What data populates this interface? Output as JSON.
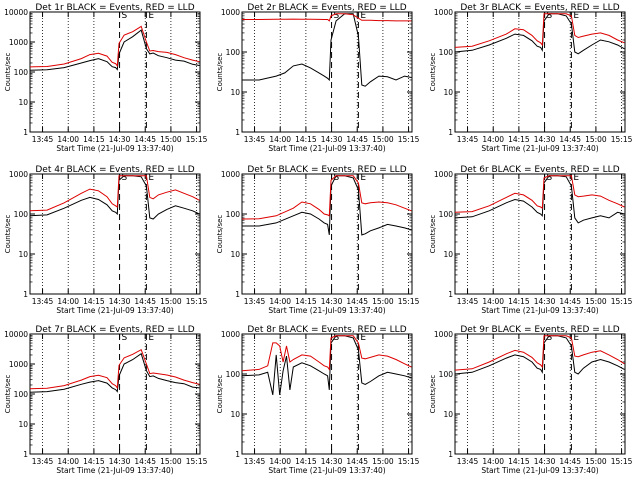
{
  "figure": {
    "background": "#ffffff",
    "axis_color": "#000000"
  },
  "common": {
    "xlabel": "Start Time (21-Jul-09 13:37:40)",
    "ylabel": "Counts/sec",
    "x_ticks": [
      "13:45",
      "14:00",
      "14:15",
      "14:30",
      "14:45",
      "15:00",
      "15:15"
    ],
    "y_ticks": [
      "1",
      "10",
      "100",
      "1000",
      "10000"
    ],
    "marker_s": "S",
    "marker_e": "E",
    "series": [
      {
        "name": "BLACK = Events",
        "color": "#000000"
      },
      {
        "name": "RED = LLD",
        "color": "#dd0000"
      }
    ]
  },
  "chart_data": [
    {
      "type": "line",
      "title": "Det 1r  BLACK = Events, RED = LLD",
      "y_scale": "log",
      "ylim": [
        1,
        10000
      ],
      "xlim": [
        "13:37:40",
        "15:17:00"
      ],
      "grid": "vertical dotted",
      "x_minutes": [
        0,
        10,
        20,
        30,
        35,
        40,
        45,
        48,
        50,
        51,
        52,
        55,
        60,
        65,
        68,
        70,
        72,
        75,
        80,
        85,
        90,
        95,
        99
      ],
      "series": [
        {
          "values": [
            115,
            118,
            140,
            200,
            240,
            280,
            220,
            150,
            140,
            120,
            400,
            1000,
            1500,
            2500,
            600,
            400,
            430,
            350,
            300,
            250,
            230,
            180,
            165
          ]
        },
        {
          "values": [
            148,
            152,
            185,
            280,
            380,
            420,
            340,
            210,
            190,
            160,
            900,
            1700,
            2200,
            3300,
            1000,
            500,
            520,
            480,
            450,
            380,
            300,
            250,
            220
          ]
        }
      ]
    },
    {
      "type": "line",
      "title": "Det 2r  BLACK = Events, RED = LLD",
      "y_scale": "log",
      "ylim": [
        1,
        1000
      ],
      "xlim": [
        "13:37:40",
        "15:17:00"
      ],
      "grid": "vertical dotted",
      "x_minutes": [
        0,
        10,
        20,
        25,
        30,
        35,
        40,
        45,
        48,
        50,
        51,
        52,
        55,
        60,
        65,
        68,
        70,
        72,
        75,
        80,
        85,
        90,
        95,
        99
      ],
      "series": [
        {
          "values": [
            20,
            20,
            25,
            30,
            45,
            50,
            40,
            30,
            25,
            22,
            20,
            200,
            600,
            900,
            900,
            250,
            15,
            14,
            18,
            25,
            24,
            20,
            25,
            23
          ]
        },
        {
          "values": [
            650,
            650,
            660,
            660,
            665,
            660,
            660,
            655,
            650,
            650,
            600,
            800,
            900,
            900,
            850,
            700,
            620,
            620,
            620,
            610,
            610,
            600,
            600,
            600
          ]
        }
      ]
    },
    {
      "type": "line",
      "title": "Det 3r  BLACK = Events, RED = LLD",
      "y_scale": "log",
      "ylim": [
        1,
        1000
      ],
      "xlim": [
        "13:37:40",
        "15:17:00"
      ],
      "grid": "vertical dotted",
      "x_minutes": [
        0,
        10,
        20,
        30,
        35,
        40,
        45,
        48,
        50,
        51,
        52,
        55,
        60,
        65,
        68,
        70,
        72,
        75,
        80,
        85,
        90,
        95,
        99
      ],
      "series": [
        {
          "values": [
            100,
            110,
            150,
            220,
            280,
            260,
            190,
            140,
            130,
            110,
            600,
            900,
            900,
            800,
            500,
            100,
            90,
            110,
            150,
            200,
            180,
            150,
            120
          ]
        },
        {
          "values": [
            130,
            140,
            190,
            280,
            380,
            360,
            260,
            190,
            170,
            150,
            900,
            900,
            900,
            900,
            800,
            260,
            230,
            250,
            280,
            300,
            260,
            200,
            170
          ]
        }
      ]
    },
    {
      "type": "line",
      "title": "Det 4r  BLACK = Events, RED = LLD",
      "y_scale": "log",
      "ylim": [
        1,
        1000
      ],
      "xlim": [
        "13:37:40",
        "15:17:00"
      ],
      "grid": "vertical dotted",
      "x_minutes": [
        0,
        10,
        20,
        30,
        35,
        40,
        45,
        48,
        50,
        51,
        52,
        55,
        60,
        65,
        68,
        70,
        72,
        75,
        80,
        85,
        90,
        95,
        99
      ],
      "series": [
        {
          "values": [
            90,
            95,
            140,
            220,
            260,
            230,
            170,
            120,
            110,
            100,
            700,
            900,
            900,
            850,
            500,
            80,
            75,
            100,
            130,
            160,
            140,
            120,
            100
          ]
        },
        {
          "values": [
            120,
            125,
            190,
            330,
            420,
            380,
            270,
            180,
            160,
            150,
            900,
            900,
            900,
            900,
            900,
            260,
            240,
            300,
            350,
            400,
            330,
            270,
            220
          ]
        }
      ]
    },
    {
      "type": "line",
      "title": "Det 5r  BLACK = Events, RED = LLD",
      "y_scale": "log",
      "ylim": [
        1,
        1000
      ],
      "xlim": [
        "13:37:40",
        "15:17:00"
      ],
      "grid": "vertical dotted",
      "x_minutes": [
        0,
        10,
        20,
        30,
        35,
        40,
        45,
        48,
        50,
        51,
        52,
        55,
        60,
        65,
        68,
        70,
        72,
        75,
        80,
        85,
        90,
        95,
        99
      ],
      "series": [
        {
          "values": [
            50,
            50,
            60,
            90,
            110,
            100,
            75,
            60,
            55,
            30,
            500,
            900,
            900,
            800,
            400,
            30,
            32,
            38,
            45,
            55,
            50,
            45,
            40
          ]
        },
        {
          "values": [
            75,
            76,
            90,
            140,
            200,
            180,
            130,
            100,
            95,
            90,
            700,
            900,
            900,
            900,
            600,
            190,
            180,
            190,
            200,
            190,
            170,
            140,
            120
          ]
        }
      ]
    },
    {
      "type": "line",
      "title": "Det 6r  BLACK = Events, RED = LLD",
      "y_scale": "log",
      "ylim": [
        1,
        1000
      ],
      "xlim": [
        "13:37:40",
        "15:17:00"
      ],
      "grid": "vertical dotted",
      "x_minutes": [
        0,
        10,
        20,
        30,
        35,
        40,
        45,
        48,
        50,
        51,
        52,
        55,
        60,
        65,
        68,
        70,
        72,
        75,
        80,
        85,
        90,
        95,
        99
      ],
      "series": [
        {
          "values": [
            80,
            85,
            120,
            190,
            230,
            210,
            150,
            110,
            100,
            90,
            600,
            900,
            900,
            850,
            500,
            80,
            60,
            70,
            80,
            90,
            80,
            110,
            100
          ]
        },
        {
          "values": [
            110,
            115,
            160,
            260,
            330,
            300,
            220,
            160,
            150,
            140,
            800,
            900,
            900,
            900,
            900,
            300,
            270,
            280,
            300,
            280,
            220,
            180,
            150
          ]
        }
      ]
    },
    {
      "type": "line",
      "title": "Det 7r  BLACK = Events, RED = LLD",
      "y_scale": "log",
      "ylim": [
        1,
        10000
      ],
      "xlim": [
        "13:37:40",
        "15:17:00"
      ],
      "grid": "vertical dotted",
      "x_minutes": [
        0,
        10,
        20,
        30,
        35,
        40,
        45,
        48,
        50,
        51,
        52,
        55,
        60,
        65,
        68,
        70,
        72,
        75,
        80,
        85,
        90,
        95,
        99
      ],
      "series": [
        {
          "values": [
            115,
            120,
            145,
            210,
            250,
            280,
            230,
            160,
            140,
            120,
            400,
            1000,
            1400,
            2200,
            600,
            380,
            400,
            330,
            280,
            240,
            220,
            170,
            160
          ]
        },
        {
          "values": [
            150,
            155,
            190,
            290,
            380,
            420,
            350,
            220,
            190,
            160,
            900,
            1600,
            2100,
            3000,
            1000,
            480,
            500,
            470,
            430,
            370,
            290,
            240,
            210
          ]
        }
      ]
    },
    {
      "type": "line",
      "title": "Det 8r  BLACK = Events, RED = LLD",
      "y_scale": "log",
      "ylim": [
        1,
        1000
      ],
      "xlim": [
        "13:37:40",
        "15:17:00"
      ],
      "grid": "vertical dotted",
      "x_minutes": [
        0,
        10,
        15,
        18,
        20,
        22,
        24,
        26,
        28,
        30,
        35,
        40,
        45,
        48,
        50,
        51,
        52,
        55,
        60,
        65,
        68,
        70,
        72,
        75,
        80,
        85,
        90,
        95,
        99
      ],
      "series": [
        {
          "values": [
            90,
            95,
            110,
            30,
            300,
            30,
            120,
            280,
            40,
            150,
            190,
            160,
            120,
            100,
            90,
            40,
            600,
            900,
            900,
            800,
            400,
            60,
            55,
            65,
            90,
            110,
            100,
            90,
            80
          ]
        },
        {
          "values": [
            120,
            130,
            160,
            600,
            600,
            500,
            200,
            500,
            200,
            230,
            300,
            280,
            200,
            160,
            150,
            130,
            800,
            900,
            900,
            900,
            600,
            250,
            240,
            260,
            300,
            280,
            230,
            180,
            150
          ]
        }
      ]
    },
    {
      "type": "line",
      "title": "Det 9r  BLACK = Events, RED = LLD",
      "y_scale": "log",
      "ylim": [
        1,
        1000
      ],
      "xlim": [
        "13:37:40",
        "15:17:00"
      ],
      "grid": "vertical dotted",
      "x_minutes": [
        0,
        10,
        20,
        30,
        35,
        40,
        45,
        48,
        50,
        51,
        52,
        55,
        60,
        65,
        68,
        70,
        72,
        75,
        80,
        85,
        90,
        95,
        99
      ],
      "series": [
        {
          "values": [
            100,
            110,
            160,
            250,
            300,
            270,
            200,
            140,
            130,
            110,
            600,
            900,
            900,
            800,
            500,
            110,
            100,
            140,
            200,
            230,
            200,
            160,
            130
          ]
        },
        {
          "values": [
            125,
            135,
            200,
            320,
            390,
            350,
            260,
            190,
            170,
            150,
            900,
            900,
            900,
            900,
            800,
            280,
            270,
            300,
            350,
            380,
            300,
            230,
            180
          ]
        }
      ]
    }
  ]
}
